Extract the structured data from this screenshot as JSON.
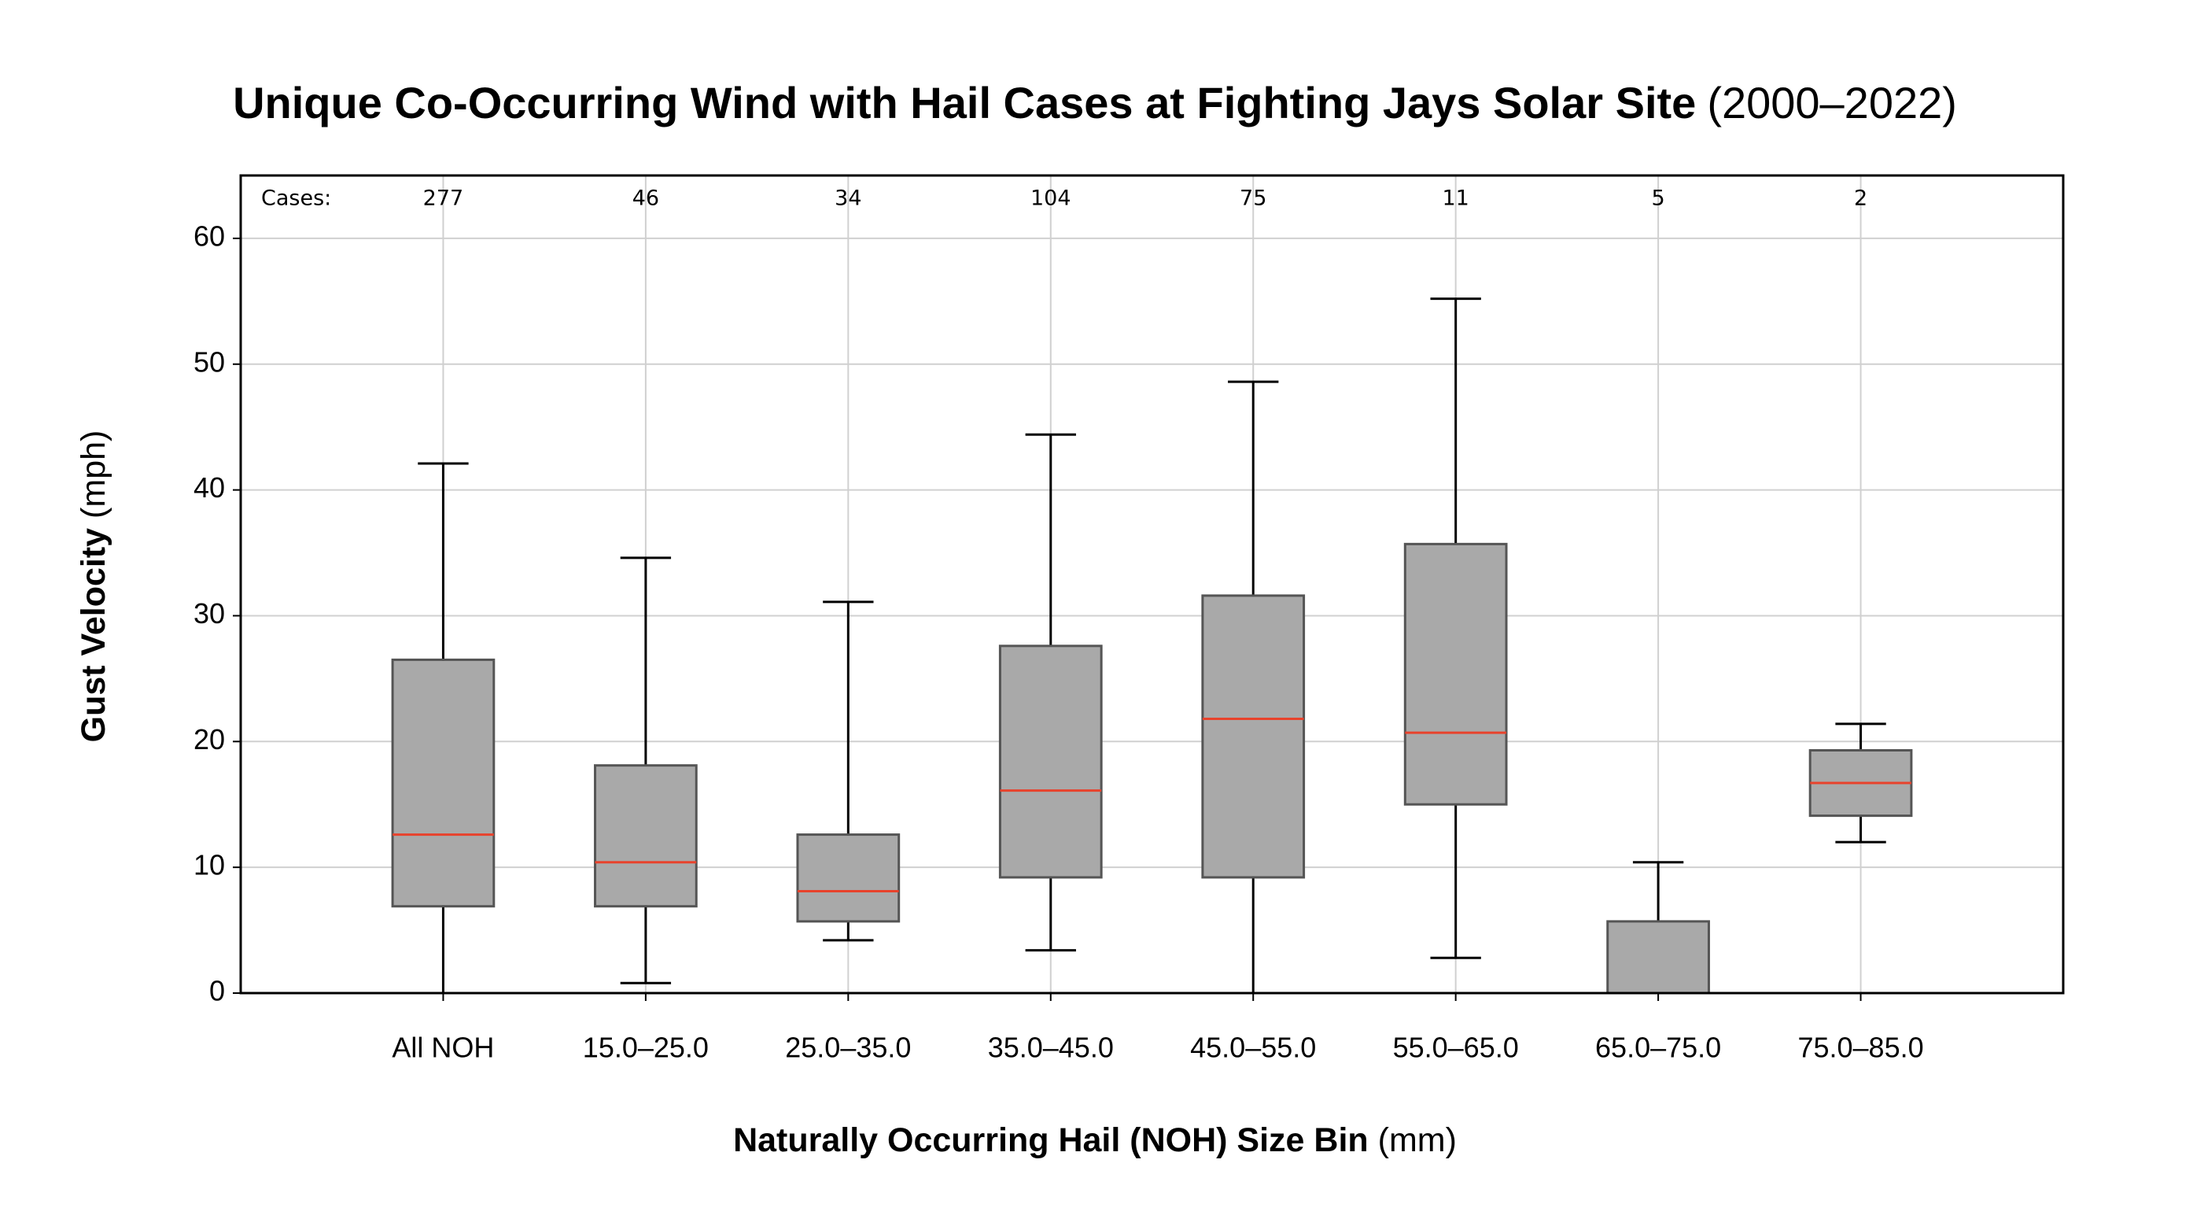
{
  "chart_data": {
    "type": "box",
    "title": "Unique Co-Occurring Wind with Hail Cases at Fighting Jays Solar Site",
    "title_suffix": "(2000–2022)",
    "x_label": "Naturally Occurring Hail (NOH) Size Bin",
    "x_label_suffix": "(mm)",
    "y_label": "Gust Velocity",
    "y_label_suffix": "(mph)",
    "categories": [
      "All NOH",
      "15.0–25.0",
      "25.0–35.0",
      "35.0–45.0",
      "45.0–55.0",
      "55.0–65.0",
      "65.0–75.0",
      "75.0–85.0"
    ],
    "boxes": [
      {
        "low": 0,
        "q1": 6.9,
        "median": 12.6,
        "q3": 26.5,
        "high": 42.1
      },
      {
        "low": 0.8,
        "q1": 6.9,
        "median": 10.4,
        "q3": 18.1,
        "high": 34.6
      },
      {
        "low": 4.2,
        "q1": 5.7,
        "median": 8.1,
        "q3": 12.6,
        "high": 31.1
      },
      {
        "low": 3.4,
        "q1": 9.2,
        "median": 16.1,
        "q3": 27.6,
        "high": 44.4
      },
      {
        "low": 0,
        "q1": 9.2,
        "median": 21.8,
        "q3": 31.6,
        "high": 48.6
      },
      {
        "low": 2.8,
        "q1": 15.0,
        "median": 20.7,
        "q3": 35.7,
        "high": 55.2
      },
      {
        "low": 0,
        "q1": 0,
        "median": 0,
        "q3": 5.7,
        "high": 10.4
      },
      {
        "low": 12.0,
        "q1": 14.1,
        "median": 16.7,
        "q3": 19.3,
        "high": 21.4
      }
    ],
    "cases_label": "Cases:",
    "cases": [
      277,
      46,
      34,
      104,
      75,
      11,
      5,
      2
    ],
    "box_color": "#a9a9a9",
    "median_color": "#e8422c",
    "ylim": [
      0,
      65
    ],
    "yticks": [
      0,
      10,
      20,
      30,
      40,
      50,
      60
    ],
    "grid": true
  }
}
